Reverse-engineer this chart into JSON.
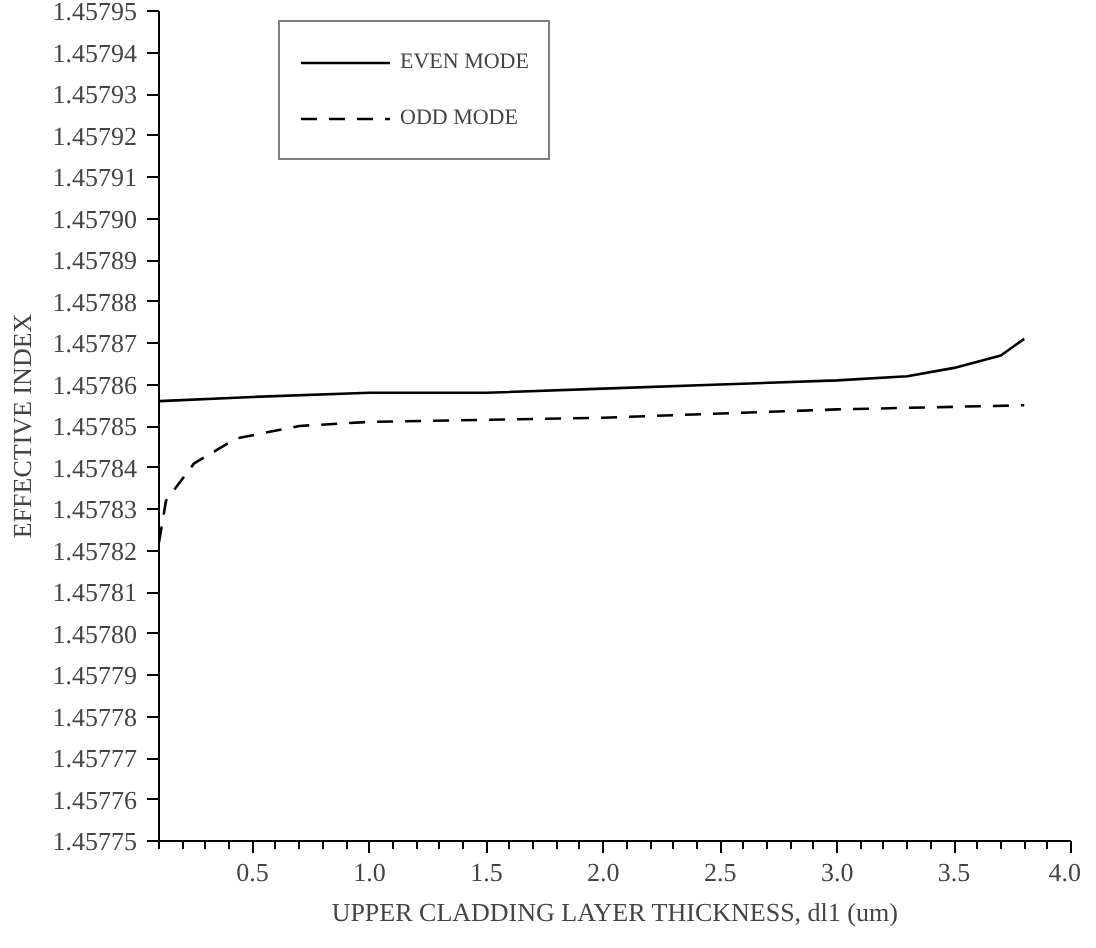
{
  "chart_data": {
    "type": "line",
    "xlabel": "UPPER CLADDING LAYER THICKNESS, dl1 (um)",
    "ylabel": "EFFECTIVE INDEX",
    "xlim": [
      0.1,
      4.0
    ],
    "ylim": [
      1.45775,
      1.45795
    ],
    "xticks": [
      0.5,
      {
        "value": 1,
        "label": "1.0"
      },
      1.5,
      {
        "value": 2,
        "label": "2.0"
      },
      2.5,
      {
        "value": 3,
        "label": "3.0"
      },
      3.5,
      {
        "value": 4,
        "label": "4.0"
      }
    ],
    "yticks": [
      {
        "value": 1.45775,
        "label": "1.45775"
      },
      {
        "value": 1.45776,
        "label": "1.45776"
      },
      {
        "value": 1.45777,
        "label": "1.45777"
      },
      {
        "value": 1.45778,
        "label": "1.45778"
      },
      {
        "value": 1.45779,
        "label": "1.45779"
      },
      {
        "value": 1.4578,
        "label": "1.45780"
      },
      {
        "value": 1.45781,
        "label": "1.45781"
      },
      {
        "value": 1.45782,
        "label": "1.45782"
      },
      {
        "value": 1.45783,
        "label": "1.45783"
      },
      {
        "value": 1.45784,
        "label": "1.45784"
      },
      {
        "value": 1.45785,
        "label": "1.45785"
      },
      {
        "value": 1.45786,
        "label": "1.45786"
      },
      {
        "value": 1.45787,
        "label": "1.45787"
      },
      {
        "value": 1.45788,
        "label": "1.45788"
      },
      {
        "value": 1.45789,
        "label": "1.45789"
      },
      {
        "value": 1.4579,
        "label": "1.45790"
      },
      {
        "value": 1.45791,
        "label": "1.45791"
      },
      {
        "value": 1.45792,
        "label": "1.45792"
      },
      {
        "value": 1.45793,
        "label": "1.45793"
      },
      {
        "value": 1.45794,
        "label": "1.45794"
      },
      {
        "value": 1.45795,
        "label": "1.45795"
      }
    ],
    "grid": false,
    "legend": "top left",
    "marker": "none",
    "series": [
      {
        "name": "EVEN MODE",
        "color": "#000000",
        "line_style": "solid",
        "x": [
          0.1,
          0.5,
          1.0,
          1.5,
          2.0,
          2.5,
          3.0,
          3.3,
          3.5,
          3.7,
          3.8
        ],
        "values": [
          1.457856,
          1.457857,
          1.457858,
          1.457858,
          1.457859,
          1.45786,
          1.457861,
          1.457862,
          1.457864,
          1.457867,
          1.457871
        ]
      },
      {
        "name": "ODD MODE",
        "color": "#000000",
        "line_style": "dashed",
        "x": [
          0.1,
          0.13,
          0.25,
          0.43,
          0.7,
          1.0,
          2.0,
          3.0,
          3.8
        ],
        "values": [
          1.457822,
          1.457832,
          1.457841,
          1.457847,
          1.45785,
          1.457851,
          1.457852,
          1.457854,
          1.457855
        ]
      }
    ]
  }
}
